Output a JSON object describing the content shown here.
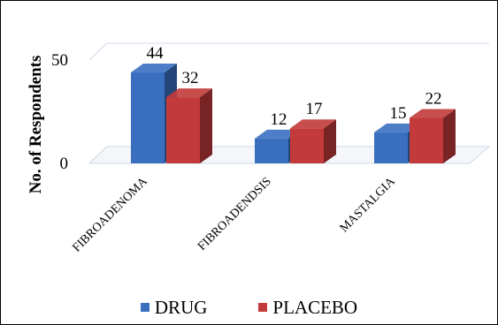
{
  "chart_data": {
    "type": "bar",
    "style": "3d-clustered-column",
    "categories": [
      "FIBROADENOMA",
      "FIBROADENOSIS",
      "MASTALGIA"
    ],
    "category_display": [
      "FIBROADENOMA",
      "FIBROADENDSIS",
      "MASTALGIA"
    ],
    "series": [
      {
        "name": "DRUG",
        "values": [
          44,
          12,
          15
        ],
        "color": "#3a6fc0"
      },
      {
        "name": "PLACEBO",
        "values": [
          32,
          17,
          22
        ],
        "color": "#c23a3a"
      }
    ],
    "ylabel": "No. of Respondents",
    "xlabel": "",
    "title": "",
    "ylim": [
      0,
      50
    ],
    "yticks": [
      0,
      50
    ],
    "grid": true,
    "legend": "bottom"
  }
}
